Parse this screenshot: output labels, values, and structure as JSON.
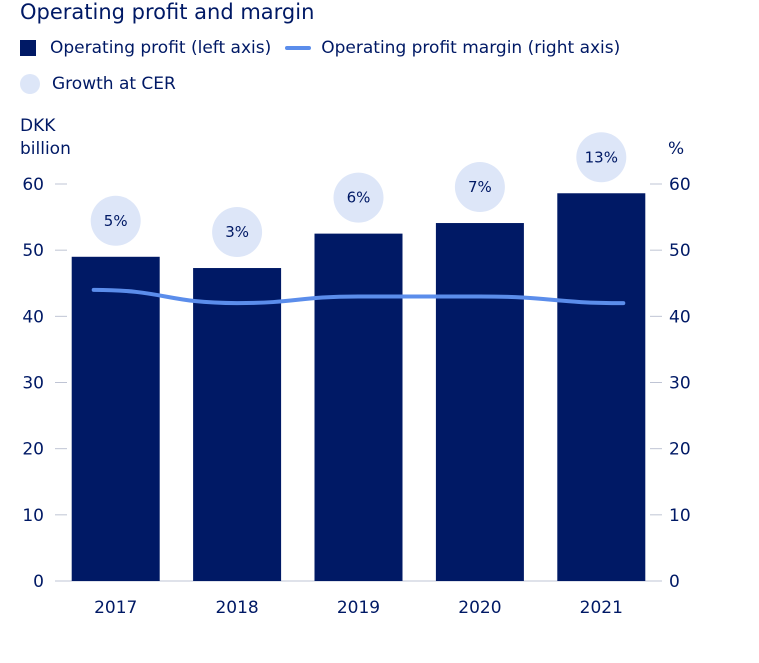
{
  "colors": {
    "bar": "#001965",
    "line": "#5B8DEB",
    "bubble": "#DDE6F8",
    "axis": "#BFC4D4",
    "text": "#001965"
  },
  "legend": {
    "bar_label": "Operating profit (left axis)",
    "line_label": "Operating profit margin (right axis)",
    "bubble_label": "Growth at CER"
  },
  "chart_data": {
    "type": "bar",
    "title": "Operating profit and margin",
    "categories": [
      "2017",
      "2018",
      "2019",
      "2020",
      "2021"
    ],
    "series": [
      {
        "name": "Operating profit (left axis)",
        "type": "bar",
        "axis": "left",
        "values": [
          49,
          47.3,
          52.5,
          54.1,
          58.6
        ]
      },
      {
        "name": "Operating profit margin (right axis)",
        "type": "line",
        "axis": "right",
        "values": [
          44,
          42,
          43,
          43,
          42
        ]
      },
      {
        "name": "Growth at CER",
        "type": "annotation",
        "labels": [
          "5%",
          "3%",
          "6%",
          "7%",
          "13%"
        ]
      }
    ],
    "ylabel_left": [
      "DKK",
      "billion"
    ],
    "ylabel_right": "%",
    "ylim": [
      0,
      60
    ],
    "yticks": [
      0,
      10,
      20,
      30,
      40,
      50,
      60
    ],
    "grid": false
  }
}
